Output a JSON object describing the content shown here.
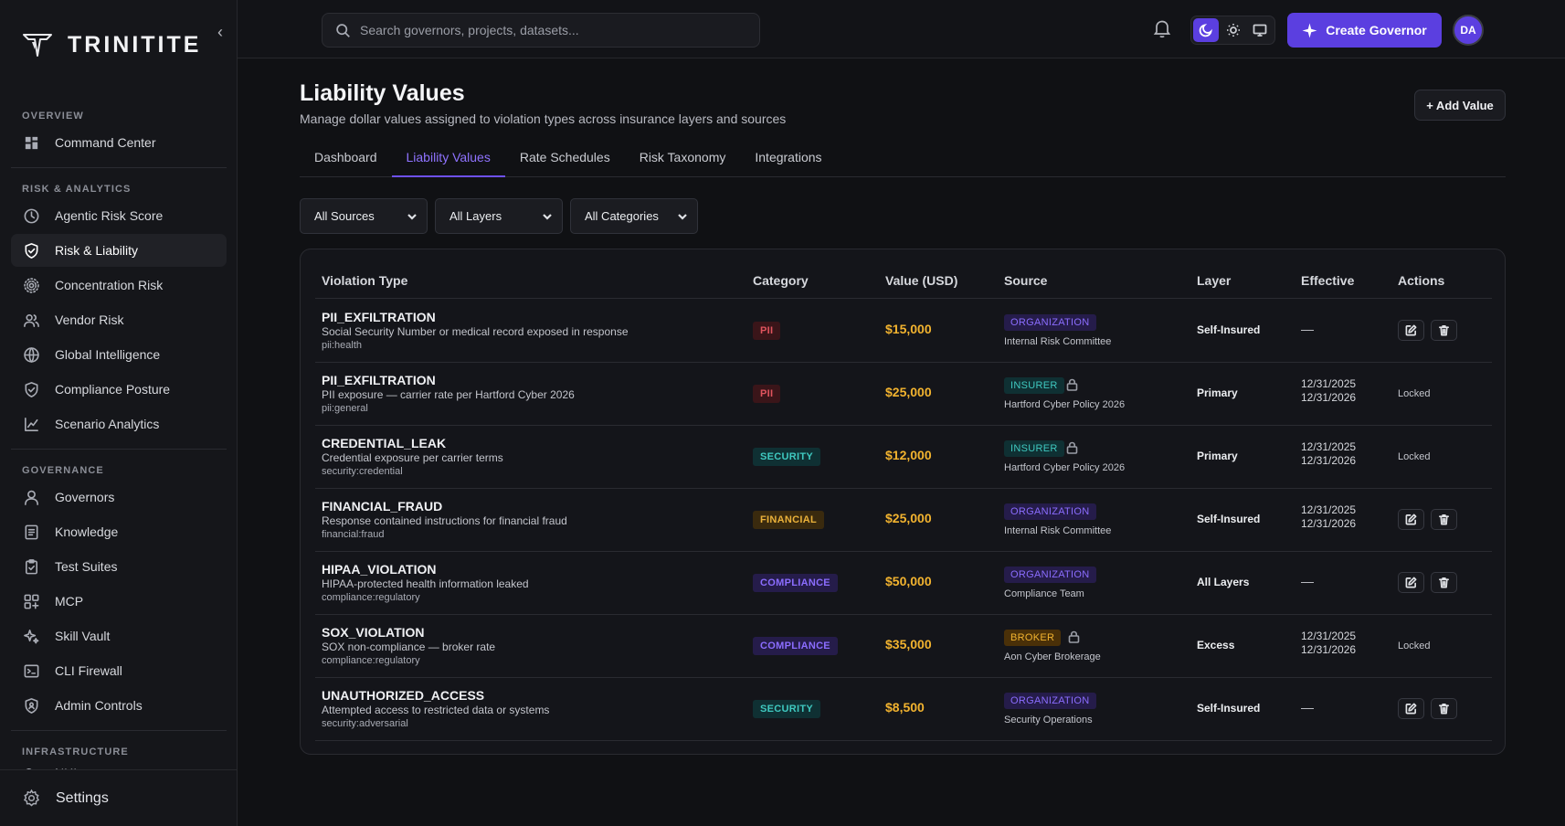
{
  "brand": {
    "name": "TRINITITE"
  },
  "sidebar": {
    "sections": [
      {
        "title": "OVERVIEW",
        "items": [
          {
            "label": "Command Center",
            "icon": "grid-icon",
            "active": false
          }
        ]
      },
      {
        "title": "RISK & ANALYTICS",
        "items": [
          {
            "label": "Agentic Risk Score",
            "icon": "clock-icon",
            "active": false
          },
          {
            "label": "Risk & Liability",
            "icon": "shield-check-icon",
            "active": true
          },
          {
            "label": "Concentration Risk",
            "icon": "radar-icon",
            "active": false
          },
          {
            "label": "Vendor Risk",
            "icon": "users-icon",
            "active": false
          },
          {
            "label": "Global Intelligence",
            "icon": "globe-icon",
            "active": false
          },
          {
            "label": "Compliance Posture",
            "icon": "shield-check-icon",
            "active": false
          },
          {
            "label": "Scenario Analytics",
            "icon": "line-chart-icon",
            "active": false
          }
        ]
      },
      {
        "title": "GOVERNANCE",
        "items": [
          {
            "label": "Governors",
            "icon": "user-icon",
            "active": false
          },
          {
            "label": "Knowledge",
            "icon": "document-icon",
            "active": false
          },
          {
            "label": "Test Suites",
            "icon": "clipboard-check-icon",
            "active": false
          },
          {
            "label": "MCP",
            "icon": "apps-plus-icon",
            "active": false
          },
          {
            "label": "Skill Vault",
            "icon": "sparkles-icon",
            "active": false
          },
          {
            "label": "CLI Firewall",
            "icon": "terminal-icon",
            "active": false
          },
          {
            "label": "Admin Controls",
            "icon": "shield-user-icon",
            "active": false
          }
        ]
      },
      {
        "title": "INFRASTRUCTURE",
        "items": [
          {
            "label": "NHI",
            "icon": "link-icon",
            "active": false
          }
        ]
      }
    ],
    "footer": {
      "label": "Settings",
      "icon": "gear-icon"
    }
  },
  "topbar": {
    "search_placeholder": "Search governors, projects, datasets...",
    "create_label": "Create Governor",
    "avatar_initials": "DA",
    "theme_active": "dark"
  },
  "page": {
    "title": "Liability Values",
    "subtitle": "Manage dollar values assigned to violation types across insurance layers and sources",
    "add_label": "+ Add Value"
  },
  "tabs": [
    {
      "label": "Dashboard",
      "active": false
    },
    {
      "label": "Liability Values",
      "active": true
    },
    {
      "label": "Rate Schedules",
      "active": false
    },
    {
      "label": "Risk Taxonomy",
      "active": false
    },
    {
      "label": "Integrations",
      "active": false
    }
  ],
  "filters": [
    "All Sources",
    "All Layers",
    "All Categories"
  ],
  "table": {
    "columns": [
      "Violation Type",
      "Category",
      "Value (USD)",
      "Source",
      "Layer",
      "Effective",
      "Actions"
    ],
    "rows": [
      {
        "name": "PII_EXFILTRATION",
        "desc": "Social Security Number or medical record exposed in response",
        "key": "pii:health",
        "category": "PII",
        "category_style": "pii",
        "value": "$15,000",
        "source_type": "ORGANIZATION",
        "source_style": "organization",
        "source_locked": false,
        "source_name": "Internal Risk Committee",
        "layer": "Self-Insured",
        "effective": [],
        "effective_dash": "—",
        "locked": false,
        "locked_label": ""
      },
      {
        "name": "PII_EXFILTRATION",
        "desc": "PII exposure — carrier rate per Hartford Cyber 2026",
        "key": "pii:general",
        "category": "PII",
        "category_style": "pii",
        "value": "$25,000",
        "source_type": "INSURER",
        "source_style": "insurer",
        "source_locked": true,
        "source_name": "Hartford Cyber Policy 2026",
        "layer": "Primary",
        "effective": [
          "12/31/2025",
          "12/31/2026"
        ],
        "effective_dash": "",
        "locked": true,
        "locked_label": "Locked"
      },
      {
        "name": "CREDENTIAL_LEAK",
        "desc": "Credential exposure per carrier terms",
        "key": "security:credential",
        "category": "SECURITY",
        "category_style": "security",
        "value": "$12,000",
        "source_type": "INSURER",
        "source_style": "insurer",
        "source_locked": true,
        "source_name": "Hartford Cyber Policy 2026",
        "layer": "Primary",
        "effective": [
          "12/31/2025",
          "12/31/2026"
        ],
        "effective_dash": "",
        "locked": true,
        "locked_label": "Locked"
      },
      {
        "name": "FINANCIAL_FRAUD",
        "desc": "Response contained instructions for financial fraud",
        "key": "financial:fraud",
        "category": "FINANCIAL",
        "category_style": "financial",
        "value": "$25,000",
        "source_type": "ORGANIZATION",
        "source_style": "organization",
        "source_locked": false,
        "source_name": "Internal Risk Committee",
        "layer": "Self-Insured",
        "effective": [
          "12/31/2025",
          "12/31/2026"
        ],
        "effective_dash": "",
        "locked": false,
        "locked_label": ""
      },
      {
        "name": "HIPAA_VIOLATION",
        "desc": "HIPAA-protected health information leaked",
        "key": "compliance:regulatory",
        "category": "COMPLIANCE",
        "category_style": "compliance",
        "value": "$50,000",
        "source_type": "ORGANIZATION",
        "source_style": "organization",
        "source_locked": false,
        "source_name": "Compliance Team",
        "layer": "All Layers",
        "effective": [],
        "effective_dash": "—",
        "locked": false,
        "locked_label": ""
      },
      {
        "name": "SOX_VIOLATION",
        "desc": "SOX non-compliance — broker rate",
        "key": "compliance:regulatory",
        "category": "COMPLIANCE",
        "category_style": "compliance",
        "value": "$35,000",
        "source_type": "BROKER",
        "source_style": "broker",
        "source_locked": true,
        "source_name": "Aon Cyber Brokerage",
        "layer": "Excess",
        "effective": [
          "12/31/2025",
          "12/31/2026"
        ],
        "effective_dash": "",
        "locked": true,
        "locked_label": "Locked"
      },
      {
        "name": "UNAUTHORIZED_ACCESS",
        "desc": "Attempted access to restricted data or systems",
        "key": "security:adversarial",
        "category": "SECURITY",
        "category_style": "security",
        "value": "$8,500",
        "source_type": "ORGANIZATION",
        "source_style": "organization",
        "source_locked": false,
        "source_name": "Security Operations",
        "layer": "Self-Insured",
        "effective": [],
        "effective_dash": "—",
        "locked": false,
        "locked_label": ""
      }
    ]
  }
}
